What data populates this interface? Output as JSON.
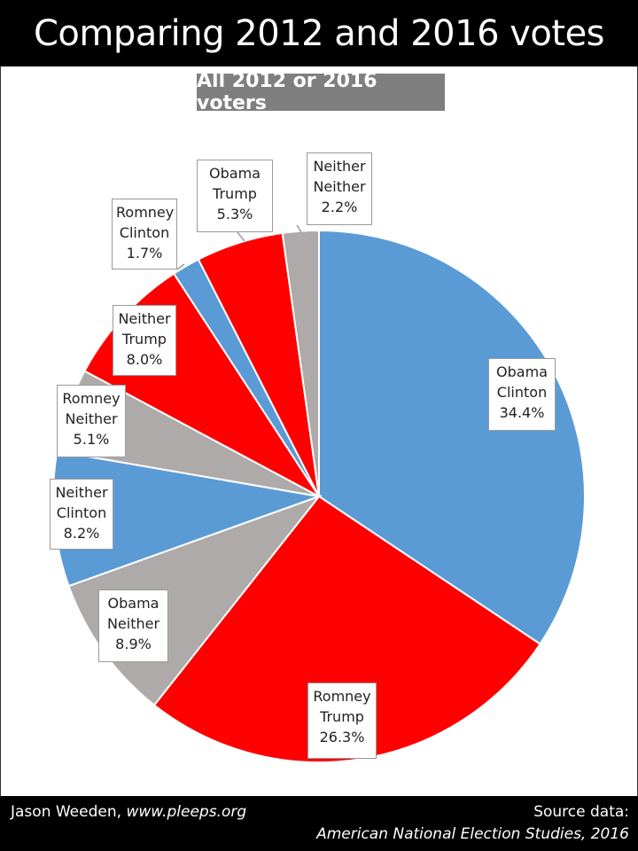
{
  "title": "Comparing 2012 and 2016 votes",
  "subtitle": "All 2012 or 2016 voters",
  "footer": {
    "author": "Jason Weeden, ",
    "site": "www.pleeps.org",
    "source_label": "Source data:",
    "source": "American National Election Studies, 2016"
  },
  "chart_data": {
    "type": "pie",
    "title": "All 2012 or 2016 voters",
    "slices": [
      {
        "vote2012": "Obama",
        "vote2016": "Clinton",
        "value": 34.4,
        "value_label": "34.4%",
        "color": "#5b9bd5"
      },
      {
        "vote2012": "Romney",
        "vote2016": "Trump",
        "value": 26.3,
        "value_label": "26.3%",
        "color": "#ff0000"
      },
      {
        "vote2012": "Obama",
        "vote2016": "Neither",
        "value": 8.9,
        "value_label": "8.9%",
        "color": "#aeaaaa"
      },
      {
        "vote2012": "Neither",
        "vote2016": "Clinton",
        "value": 8.2,
        "value_label": "8.2%",
        "color": "#5b9bd5"
      },
      {
        "vote2012": "Romney",
        "vote2016": "Neither",
        "value": 5.1,
        "value_label": "5.1%",
        "color": "#aeaaaa"
      },
      {
        "vote2012": "Neither",
        "vote2016": "Trump",
        "value": 8.0,
        "value_label": "8.0%",
        "color": "#ff0000"
      },
      {
        "vote2012": "Romney",
        "vote2016": "Clinton",
        "value": 1.7,
        "value_label": "1.7%",
        "color": "#5b9bd5"
      },
      {
        "vote2012": "Obama",
        "vote2016": "Trump",
        "value": 5.3,
        "value_label": "5.3%",
        "color": "#ff0000"
      },
      {
        "vote2012": "Neither",
        "vote2016": "Neither",
        "value": 2.2,
        "value_label": "2.2%",
        "color": "#aeaaaa"
      }
    ]
  }
}
